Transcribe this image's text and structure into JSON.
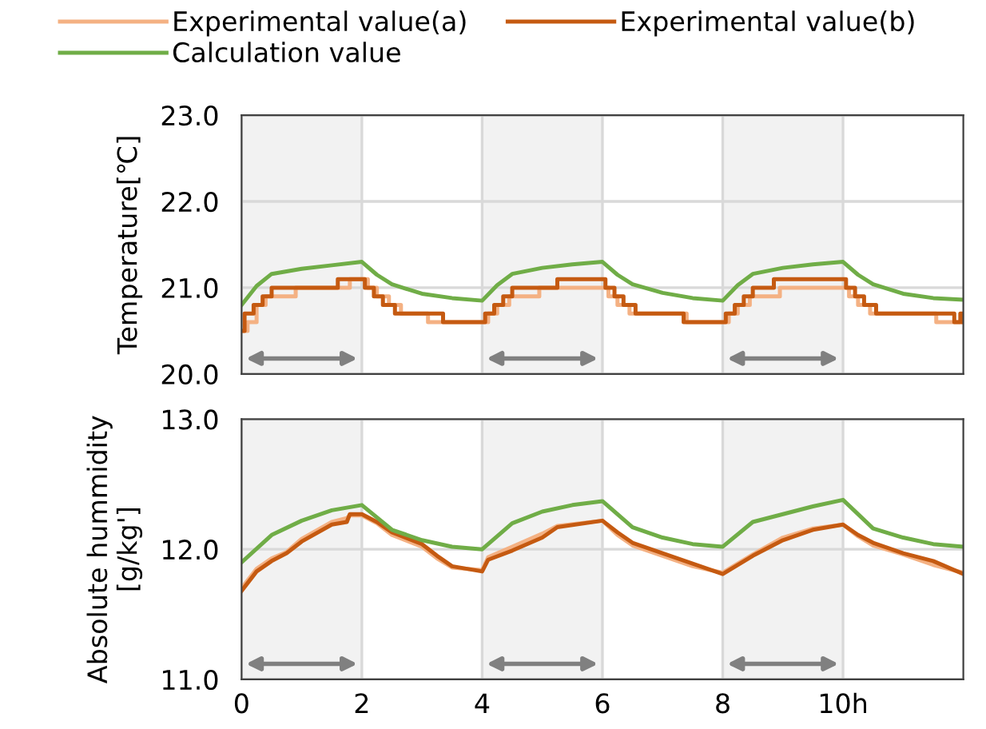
{
  "chart_data": [
    {
      "type": "line",
      "ylabel": "Temperature[℃]",
      "xlim": [
        0,
        12
      ],
      "xticks": [
        0,
        2,
        4,
        6,
        8,
        10
      ],
      "ylim": [
        20.0,
        23.0
      ],
      "yticks": [
        {
          "value": 20.0,
          "label": "20.0"
        },
        {
          "value": 21.0,
          "label": "21.0"
        },
        {
          "value": 22.0,
          "label": "22.0"
        },
        {
          "value": 23.0,
          "label": "23.0"
        }
      ],
      "tick_labels": "y",
      "grid": true,
      "legend": "top",
      "bands": [
        {
          "axis": "x",
          "from": 0,
          "to": 2,
          "color": "#808080"
        },
        {
          "axis": "x",
          "from": 4,
          "to": 6,
          "color": "#808080"
        },
        {
          "axis": "x",
          "from": 8,
          "to": 10,
          "color": "#808080"
        }
      ],
      "series": [
        {
          "name": "Experimental value(a)",
          "type": "step",
          "color": "#f4b183",
          "x": [
            0,
            0.1,
            0.25,
            0.4,
            0.6,
            0.9,
            1.8,
            2.1,
            2.25,
            2.45,
            2.65,
            3.1,
            3.6,
            4.0,
            4.1,
            4.25,
            4.45,
            4.65,
            4.95,
            6.1,
            6.25,
            6.45,
            6.65,
            7.4,
            8.0,
            8.1,
            8.25,
            8.45,
            8.65,
            8.95,
            10.1,
            10.25,
            10.45,
            10.65,
            11.55,
            12
          ],
          "values": [
            20.5,
            20.6,
            20.8,
            20.9,
            20.9,
            21.0,
            21.1,
            21.0,
            20.9,
            20.8,
            20.7,
            20.6,
            20.6,
            20.6,
            20.7,
            20.8,
            20.9,
            20.9,
            21.0,
            20.9,
            20.8,
            20.7,
            20.7,
            20.6,
            20.6,
            20.7,
            20.8,
            20.9,
            20.9,
            21.0,
            20.9,
            20.8,
            20.7,
            20.7,
            20.6,
            20.6
          ]
        },
        {
          "name": "Experimental value(b)",
          "type": "step",
          "color": "#c55a11",
          "x": [
            0,
            0.05,
            0.2,
            0.35,
            0.5,
            1.6,
            2.05,
            2.2,
            2.35,
            2.55,
            3.35,
            4.0,
            4.05,
            4.2,
            4.35,
            4.5,
            5.25,
            6.05,
            6.2,
            6.35,
            6.55,
            7.35,
            8.0,
            8.05,
            8.2,
            8.35,
            8.5,
            8.85,
            10.05,
            10.2,
            10.35,
            10.55,
            11.85,
            11.95,
            12
          ],
          "values": [
            20.5,
            20.7,
            20.8,
            20.9,
            21.0,
            21.1,
            21.0,
            20.9,
            20.8,
            20.7,
            20.6,
            20.6,
            20.7,
            20.8,
            20.9,
            21.0,
            21.1,
            21.0,
            20.9,
            20.8,
            20.7,
            20.6,
            20.6,
            20.7,
            20.8,
            20.9,
            21.0,
            21.1,
            21.0,
            20.9,
            20.8,
            20.7,
            20.6,
            20.7,
            20.6
          ]
        },
        {
          "name": "Calculation value",
          "color": "#70ad47",
          "x": [
            0,
            0.25,
            0.5,
            1,
            1.5,
            2,
            2.25,
            2.5,
            3,
            3.5,
            4,
            4.25,
            4.5,
            5,
            5.5,
            6,
            6.25,
            6.5,
            7,
            7.5,
            8,
            8.25,
            8.5,
            9,
            9.5,
            10,
            10.25,
            10.5,
            11,
            11.5,
            12
          ],
          "values": [
            20.8,
            21.02,
            21.16,
            21.22,
            21.26,
            21.3,
            21.15,
            21.04,
            20.93,
            20.88,
            20.85,
            21.03,
            21.16,
            21.23,
            21.27,
            21.3,
            21.15,
            21.04,
            20.94,
            20.88,
            20.85,
            21.03,
            21.16,
            21.23,
            21.27,
            21.3,
            21.15,
            21.04,
            20.93,
            20.88,
            20.86
          ]
        }
      ]
    },
    {
      "type": "line",
      "ylabel": "Absolute hummidity\n[g/kg']",
      "xlim": [
        0,
        12
      ],
      "xticks": [
        0,
        2,
        4,
        6,
        8,
        {
          "value": 10,
          "label": "10h"
        }
      ],
      "ylim": [
        11.0,
        13.0
      ],
      "yticks": [
        {
          "value": 11.0,
          "label": "11.0"
        },
        {
          "value": 12.0,
          "label": "12.0"
        },
        {
          "value": 13.0,
          "label": "13.0"
        }
      ],
      "grid": true,
      "bands": [
        {
          "axis": "x",
          "from": 0,
          "to": 2,
          "color": "#808080"
        },
        {
          "axis": "x",
          "from": 4,
          "to": 6,
          "color": "#808080"
        },
        {
          "axis": "x",
          "from": 8,
          "to": 10,
          "color": "#808080"
        }
      ],
      "series": [
        {
          "color": "#f4b183",
          "x": [
            0,
            0.25,
            0.5,
            0.75,
            1,
            1.5,
            1.75,
            1.8,
            2,
            2.25,
            2.5,
            3,
            3.25,
            3.5,
            4,
            4.1,
            4.5,
            5,
            5.25,
            6,
            6.25,
            6.5,
            7,
            7.5,
            8,
            8.5,
            9,
            9.5,
            10,
            10.25,
            10.5,
            11,
            11.5,
            12
          ],
          "values": [
            11.7,
            11.85,
            11.93,
            11.98,
            12.08,
            12.21,
            12.24,
            12.26,
            12.26,
            12.2,
            12.11,
            12.02,
            11.93,
            11.86,
            11.84,
            11.94,
            12.02,
            12.12,
            12.18,
            12.22,
            12.11,
            12.03,
            11.95,
            11.87,
            11.82,
            11.96,
            12.09,
            12.16,
            12.19,
            12.1,
            12.03,
            11.96,
            11.88,
            11.82
          ]
        },
        {
          "color": "#c55a11",
          "x": [
            0,
            0.25,
            0.5,
            0.75,
            1,
            1.5,
            1.75,
            1.8,
            2,
            2.25,
            2.5,
            3,
            3.25,
            3.5,
            4,
            4.1,
            4.5,
            5,
            5.25,
            6,
            6.25,
            6.5,
            7,
            7.5,
            8,
            8.5,
            9,
            9.5,
            10,
            10.25,
            10.5,
            11,
            11.5,
            12
          ],
          "values": [
            11.68,
            11.83,
            11.91,
            11.97,
            12.06,
            12.19,
            12.21,
            12.27,
            12.27,
            12.21,
            12.13,
            12.04,
            11.95,
            11.87,
            11.83,
            11.92,
            11.99,
            12.09,
            12.17,
            12.22,
            12.13,
            12.05,
            11.97,
            11.89,
            11.81,
            11.95,
            12.07,
            12.15,
            12.19,
            12.11,
            12.05,
            11.97,
            11.91,
            11.81
          ]
        },
        {
          "color": "#70ad47",
          "x": [
            0,
            0.5,
            1,
            1.5,
            2,
            2.5,
            3,
            3.5,
            4,
            4.5,
            5,
            5.5,
            6,
            6.5,
            7,
            7.5,
            8,
            8.5,
            9,
            9.5,
            10,
            10.5,
            11,
            11.5,
            12
          ],
          "values": [
            11.9,
            12.11,
            12.22,
            12.3,
            12.34,
            12.15,
            12.07,
            12.02,
            12.0,
            12.2,
            12.29,
            12.34,
            12.37,
            12.17,
            12.09,
            12.04,
            12.02,
            12.21,
            12.27,
            12.33,
            12.38,
            12.16,
            12.09,
            12.04,
            12.02
          ]
        }
      ]
    }
  ]
}
